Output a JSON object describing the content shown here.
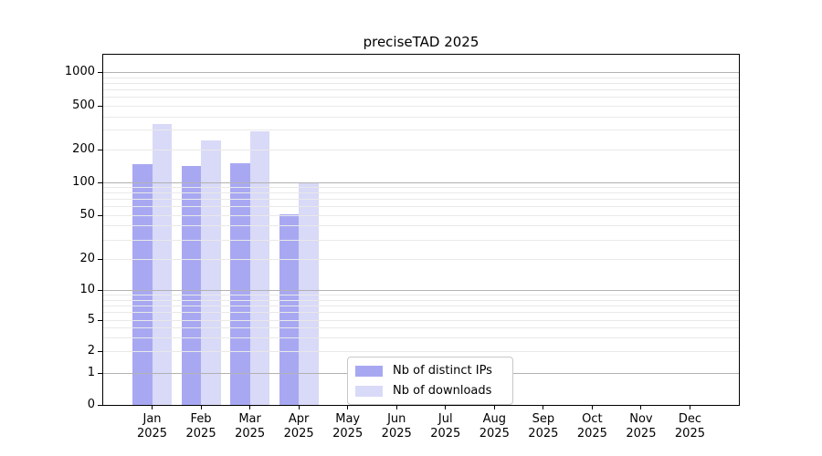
{
  "figure": {
    "title": "preciseTAD 2025",
    "background": "#ffffff"
  },
  "chart_data": {
    "type": "bar",
    "title": "preciseTAD 2025",
    "categories": [
      "Jan",
      "Feb",
      "Mar",
      "Apr",
      "May",
      "Jun",
      "Jul",
      "Aug",
      "Sep",
      "Oct",
      "Nov",
      "Dec"
    ],
    "category_year": "2025",
    "series": [
      {
        "name": "Nb of distinct IPs",
        "color": "#a8a8f2",
        "values": [
          145,
          141,
          149,
          51,
          null,
          null,
          null,
          null,
          null,
          null,
          null,
          null
        ]
      },
      {
        "name": "Nb of downloads",
        "color": "#d9d9f8",
        "values": [
          337,
          240,
          291,
          100,
          null,
          null,
          null,
          null,
          null,
          null,
          null,
          null
        ]
      }
    ],
    "y_ticks": [
      0,
      1,
      2,
      5,
      10,
      20,
      50,
      100,
      200,
      500,
      1000
    ],
    "y_scale": "log-like (0,1,2,5,...,1000)",
    "ylim": [
      0,
      1400
    ],
    "grid": "horizontal; major gray lines at 1,10,100,1000; faint minor lines at 2-9 multiples; drawn over bars",
    "legend": {
      "position": "bottom-center",
      "items": [
        "Nb of distinct IPs",
        "Nb of downloads"
      ]
    }
  },
  "colors": {
    "distinct_ips_bar": "#a8a8f2",
    "downloads_bar": "#d9d9f8",
    "major_grid": "#b2b2b2",
    "minor_grid": "#e9e9e9",
    "axis_and_text": "#000000",
    "legend_border": "#c8c8c8",
    "background": "#ffffff"
  }
}
